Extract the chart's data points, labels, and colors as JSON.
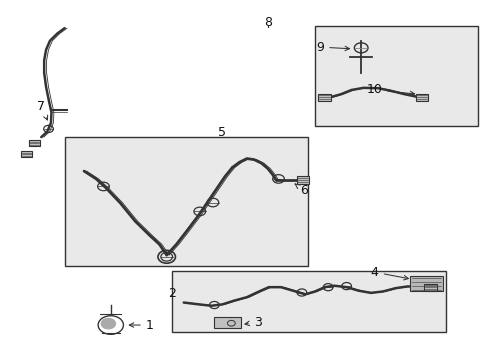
{
  "bg_color": "#ffffff",
  "line_color": "#333333",
  "box_fill": "#e9e9e9",
  "font_size": 9,
  "dpi": 100,
  "figsize": [
    4.89,
    3.6
  ]
}
